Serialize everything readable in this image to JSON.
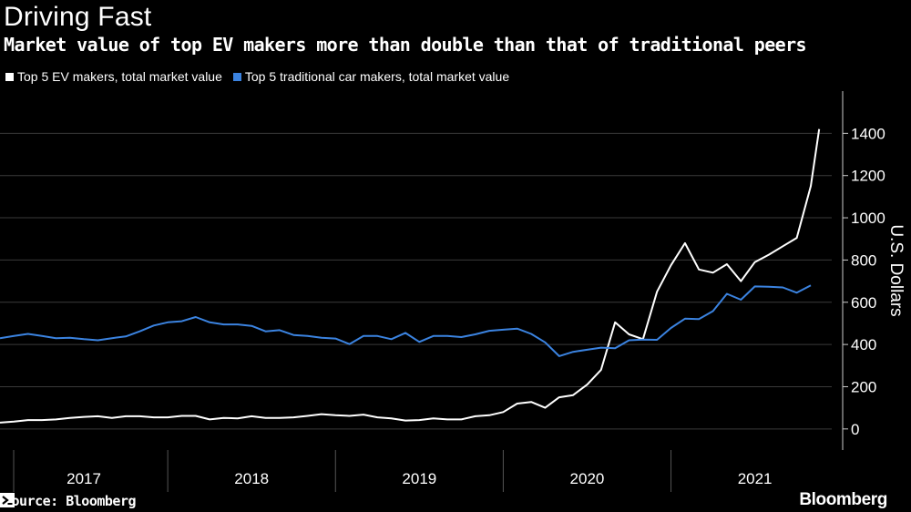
{
  "header": {
    "title": "Driving Fast",
    "subtitle": "Market value of top EV makers more than double than that of traditional peers"
  },
  "legend": [
    {
      "label": "Top 5 EV makers, total market value",
      "color": "#ffffff"
    },
    {
      "label": "Top 5 traditional car makers, total market value",
      "color": "#3b83e0"
    }
  ],
  "footer": {
    "source": "Source: Bloomberg",
    "brand": "Bloomberg"
  },
  "chart_data": {
    "type": "line",
    "title": "Driving Fast",
    "subtitle": "Market value of top EV makers more than double than that of traditional peers",
    "ylabel": "U.S. Dollars",
    "xlabel": "",
    "ylim": [
      -100,
      1600
    ],
    "yticks": [
      0,
      200,
      400,
      600,
      800,
      1000,
      1200,
      1400
    ],
    "ytick_labels": [
      "0",
      "200",
      "400",
      "600",
      "800",
      "1000",
      "1200",
      "1400"
    ],
    "xlim": [
      0,
      59.5
    ],
    "x_unit": "months since Jan 2017",
    "year_labels": [
      "2017",
      "2018",
      "2019",
      "2020",
      "2021"
    ],
    "year_label_x": [
      6,
      18,
      30,
      42,
      54
    ],
    "year_boundaries": [
      12,
      24,
      36,
      48
    ],
    "grid": true,
    "series": [
      {
        "name": "Top 5 EV makers, total market value",
        "color": "#ffffff",
        "x": [
          0,
          1,
          2,
          3,
          4,
          5,
          6,
          7,
          8,
          9,
          10,
          11,
          12,
          13,
          14,
          15,
          16,
          17,
          18,
          19,
          20,
          21,
          22,
          23,
          24,
          25,
          26,
          27,
          28,
          29,
          30,
          31,
          32,
          33,
          34,
          35,
          36,
          37,
          38,
          39,
          40,
          41,
          42,
          43,
          44,
          45,
          46,
          47,
          48,
          49,
          50,
          51,
          52,
          53,
          54,
          55,
          56,
          57,
          58,
          58.6
        ],
        "values": [
          30,
          35,
          42,
          42,
          45,
          52,
          57,
          60,
          52,
          60,
          60,
          55,
          55,
          62,
          62,
          45,
          52,
          50,
          60,
          52,
          52,
          55,
          62,
          70,
          65,
          62,
          68,
          55,
          50,
          40,
          42,
          50,
          45,
          45,
          60,
          65,
          80,
          120,
          128,
          100,
          150,
          160,
          210,
          280,
          505,
          448,
          425,
          650,
          775,
          880,
          755,
          740,
          780,
          700,
          790,
          825,
          865,
          905,
          1150,
          1420
        ]
      },
      {
        "name": "Top 5 traditional car makers, total market value",
        "color": "#3b83e0",
        "x": [
          0,
          1,
          2,
          3,
          4,
          5,
          6,
          7,
          8,
          9,
          10,
          11,
          12,
          13,
          14,
          15,
          16,
          17,
          18,
          19,
          20,
          21,
          22,
          23,
          24,
          25,
          26,
          27,
          28,
          29,
          30,
          31,
          32,
          33,
          34,
          35,
          36,
          37,
          38,
          39,
          40,
          41,
          42,
          43,
          44,
          45,
          46,
          47,
          48,
          49,
          50,
          51,
          52,
          53,
          54,
          55,
          56,
          57,
          58
        ],
        "values": [
          430,
          440,
          450,
          440,
          430,
          432,
          425,
          420,
          430,
          438,
          462,
          490,
          505,
          510,
          530,
          505,
          495,
          495,
          488,
          462,
          468,
          445,
          440,
          432,
          428,
          402,
          440,
          440,
          425,
          455,
          412,
          440,
          440,
          435,
          448,
          465,
          470,
          475,
          450,
          410,
          345,
          365,
          375,
          385,
          382,
          420,
          423,
          422,
          478,
          522,
          520,
          558,
          640,
          612,
          675,
          673,
          670,
          645,
          680
        ]
      }
    ]
  }
}
